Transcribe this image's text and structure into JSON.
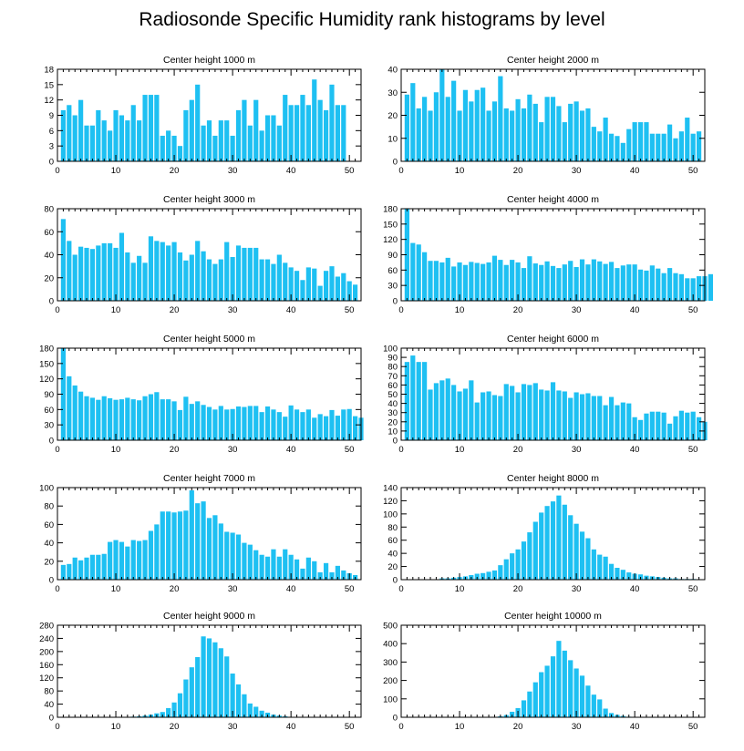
{
  "figure": {
    "title": "Radiosonde Specific Humidity rank histograms by level",
    "bar_color": "#1ec0f2"
  },
  "chart_data": [
    {
      "type": "bar",
      "title": "Center height 1000 m",
      "xlim": [
        0,
        52
      ],
      "ylim": [
        0,
        18
      ],
      "xticks": [
        0,
        10,
        20,
        30,
        40,
        50
      ],
      "yticks": [
        0,
        3,
        6,
        9,
        12,
        15,
        18
      ],
      "values": [
        10,
        11,
        9,
        12,
        7,
        7,
        10,
        8,
        6,
        10,
        9,
        8,
        11,
        8,
        13,
        13,
        13,
        5,
        6,
        5,
        3,
        10,
        12,
        15,
        7,
        8,
        5,
        8,
        8,
        5,
        10,
        12,
        7,
        12,
        6,
        9,
        9,
        7,
        13,
        11,
        11,
        13,
        11,
        16,
        12,
        10,
        15,
        11,
        11
      ]
    },
    {
      "type": "bar",
      "title": "Center height 2000 m",
      "xlim": [
        0,
        52
      ],
      "ylim": [
        0,
        40
      ],
      "xticks": [
        0,
        10,
        20,
        30,
        40,
        50
      ],
      "yticks": [
        0,
        10,
        20,
        30,
        40
      ],
      "values": [
        29,
        34,
        23,
        28,
        22,
        30,
        40,
        28,
        35,
        22,
        31,
        26,
        31,
        32,
        22,
        26,
        37,
        23,
        22,
        27,
        23,
        29,
        25,
        17,
        28,
        28,
        24,
        17,
        25,
        26,
        22,
        23,
        15,
        13,
        19,
        12,
        11,
        8,
        14,
        17,
        17,
        17,
        12,
        12,
        12,
        16,
        10,
        13,
        19,
        12,
        13
      ]
    },
    {
      "type": "bar",
      "title": "Center height 3000 m",
      "xlim": [
        0,
        52
      ],
      "ylim": [
        0,
        80
      ],
      "xticks": [
        0,
        10,
        20,
        30,
        40,
        50
      ],
      "yticks": [
        0,
        20,
        40,
        60,
        80
      ],
      "values": [
        71,
        52,
        40,
        47,
        46,
        45,
        48,
        50,
        50,
        46,
        59,
        42,
        33,
        39,
        33,
        56,
        52,
        51,
        48,
        51,
        42,
        35,
        40,
        52,
        43,
        36,
        32,
        36,
        51,
        38,
        48,
        46,
        46,
        46,
        36,
        36,
        32,
        40,
        33,
        29,
        26,
        18,
        29,
        28,
        13,
        26,
        30,
        21,
        24,
        17,
        14
      ]
    },
    {
      "type": "bar",
      "title": "Center height 4000 m",
      "xlim": [
        0,
        52
      ],
      "ylim": [
        0,
        180
      ],
      "xticks": [
        0,
        10,
        20,
        30,
        40,
        50
      ],
      "yticks": [
        0,
        30,
        60,
        90,
        120,
        150,
        180
      ],
      "values": [
        180,
        113,
        110,
        95,
        78,
        78,
        75,
        84,
        67,
        75,
        70,
        76,
        74,
        72,
        75,
        88,
        80,
        70,
        80,
        75,
        64,
        87,
        73,
        70,
        77,
        68,
        64,
        71,
        78,
        66,
        81,
        71,
        81,
        77,
        72,
        76,
        64,
        69,
        71,
        71,
        61,
        59,
        69,
        63,
        54,
        64,
        54,
        52,
        44,
        44,
        48,
        48,
        52
      ]
    },
    {
      "type": "bar",
      "title": "Center height 5000 m",
      "xlim": [
        0,
        52
      ],
      "ylim": [
        0,
        180
      ],
      "xticks": [
        0,
        10,
        20,
        30,
        40,
        50
      ],
      "yticks": [
        0,
        30,
        60,
        90,
        120,
        150,
        180
      ],
      "values": [
        180,
        125,
        107,
        95,
        86,
        83,
        79,
        86,
        82,
        79,
        80,
        83,
        80,
        78,
        86,
        90,
        94,
        80,
        80,
        76,
        59,
        85,
        71,
        76,
        69,
        65,
        60,
        67,
        60,
        61,
        66,
        65,
        67,
        67,
        55,
        66,
        60,
        55,
        46,
        68,
        60,
        55,
        60,
        44,
        51,
        47,
        59,
        48,
        60,
        61,
        47,
        44
      ]
    },
    {
      "type": "bar",
      "title": "Center height 6000 m",
      "xlim": [
        0,
        52
      ],
      "ylim": [
        0,
        100
      ],
      "xticks": [
        0,
        10,
        20,
        30,
        40,
        50
      ],
      "yticks": [
        0,
        10,
        20,
        30,
        40,
        50,
        60,
        70,
        80,
        90,
        100
      ],
      "values": [
        85,
        92,
        85,
        85,
        55,
        62,
        65,
        67,
        60,
        53,
        56,
        65,
        41,
        52,
        53,
        49,
        48,
        61,
        59,
        52,
        61,
        60,
        62,
        55,
        54,
        63,
        54,
        53,
        46,
        52,
        50,
        51,
        48,
        48,
        38,
        47,
        38,
        41,
        40,
        25,
        22,
        29,
        31,
        31,
        30,
        18,
        26,
        32,
        30,
        31,
        25,
        20
      ]
    },
    {
      "type": "bar",
      "title": "Center height 7000 m",
      "xlim": [
        0,
        52
      ],
      "ylim": [
        0,
        100
      ],
      "xticks": [
        0,
        10,
        20,
        30,
        40,
        50
      ],
      "yticks": [
        0,
        20,
        40,
        60,
        80,
        100
      ],
      "values": [
        16,
        17,
        24,
        21,
        24,
        27,
        27,
        28,
        41,
        43,
        41,
        36,
        43,
        42,
        43,
        53,
        60,
        74,
        74,
        73,
        74,
        75,
        97,
        83,
        85,
        67,
        70,
        61,
        52,
        51,
        49,
        40,
        38,
        32,
        27,
        25,
        33,
        25,
        33,
        27,
        22,
        12,
        24,
        20,
        8,
        18,
        8,
        15,
        10,
        7,
        5
      ]
    },
    {
      "type": "bar",
      "title": "Center height 8000 m",
      "xlim": [
        0,
        52
      ],
      "ylim": [
        0,
        140
      ],
      "xticks": [
        0,
        10,
        20,
        30,
        40,
        50
      ],
      "yticks": [
        0,
        20,
        40,
        60,
        80,
        100,
        120,
        140
      ],
      "values": [
        0,
        0,
        0,
        0,
        0,
        0,
        2,
        2,
        3,
        4,
        5,
        7,
        9,
        10,
        12,
        14,
        22,
        31,
        40,
        46,
        58,
        72,
        88,
        102,
        112,
        119,
        128,
        114,
        98,
        85,
        73,
        63,
        46,
        38,
        35,
        24,
        18,
        15,
        11,
        9,
        8,
        6,
        5,
        4,
        3,
        2,
        2,
        1,
        1,
        1,
        0
      ]
    },
    {
      "type": "bar",
      "title": "Center height 9000 m",
      "xlim": [
        0,
        52
      ],
      "ylim": [
        0,
        280
      ],
      "xticks": [
        0,
        10,
        20,
        30,
        40,
        50
      ],
      "yticks": [
        0,
        40,
        80,
        120,
        160,
        200,
        240,
        280
      ],
      "values": [
        0,
        0,
        0,
        0,
        0,
        0,
        0,
        0,
        0,
        0,
        1,
        1,
        2,
        3,
        5,
        8,
        12,
        16,
        28,
        45,
        73,
        115,
        152,
        183,
        246,
        240,
        228,
        210,
        185,
        133,
        100,
        70,
        42,
        32,
        20,
        14,
        8,
        5,
        3,
        1,
        0,
        0,
        0,
        0,
        0,
        0,
        0,
        0,
        0,
        0,
        0
      ]
    },
    {
      "type": "bar",
      "title": "Center height 10000 m",
      "xlim": [
        0,
        52
      ],
      "ylim": [
        0,
        500
      ],
      "xticks": [
        0,
        10,
        20,
        30,
        40,
        50
      ],
      "yticks": [
        0,
        100,
        200,
        300,
        400,
        500
      ],
      "values": [
        0,
        0,
        0,
        0,
        0,
        0,
        0,
        0,
        0,
        0,
        0,
        0,
        0,
        0,
        1,
        2,
        5,
        12,
        30,
        50,
        92,
        140,
        190,
        245,
        280,
        331,
        415,
        362,
        310,
        265,
        226,
        172,
        123,
        97,
        47,
        23,
        13,
        7,
        3,
        2,
        1,
        0,
        0,
        0,
        0,
        0,
        0,
        0,
        0,
        0,
        0
      ]
    }
  ]
}
